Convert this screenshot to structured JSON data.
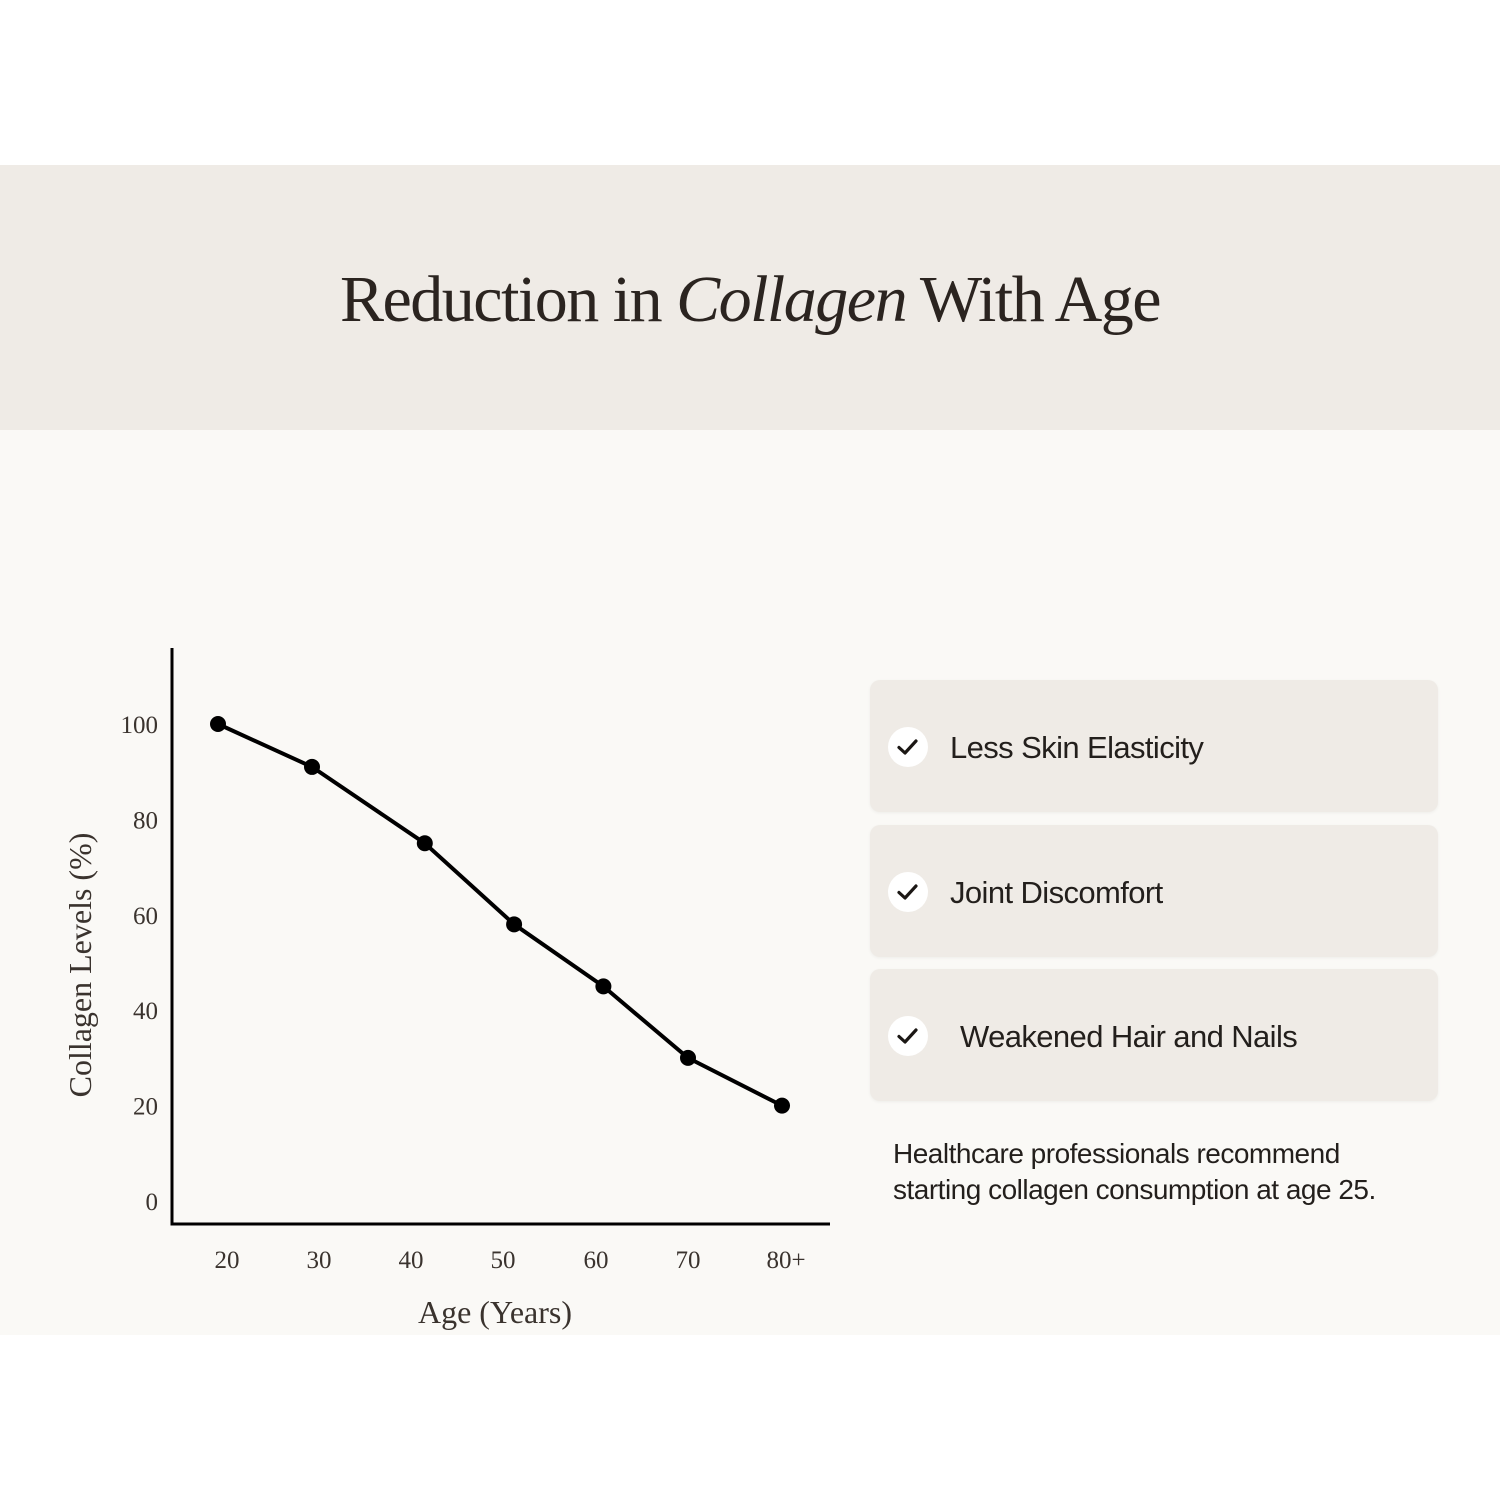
{
  "header": {
    "title_before": "Reduction in ",
    "title_emphasis": "Collagen",
    "title_after": " With Age",
    "band_color": "#efebe6"
  },
  "chart_data": {
    "type": "line",
    "title": "",
    "xlabel": "Age (Years)",
    "ylabel": "Collagen Levels (%)",
    "categories": [
      "20",
      "30",
      "40",
      "50",
      "60",
      "70",
      "80+"
    ],
    "x": [
      20,
      30,
      42,
      51.5,
      61,
      70,
      80
    ],
    "values": [
      100,
      91,
      75,
      58,
      45,
      30,
      20
    ],
    "y_ticks": [
      0,
      20,
      40,
      60,
      80,
      100
    ],
    "ylim": [
      0,
      117
    ],
    "grid": false,
    "line_color": "#000000"
  },
  "cards": [
    {
      "label": "Less Skin Elasticity",
      "icon": "check-icon"
    },
    {
      "label": "Joint Discomfort",
      "icon": "check-icon"
    },
    {
      "label": "Weakened Hair and Nails",
      "icon": "check-icon"
    }
  ],
  "note": {
    "line1": "Healthcare professionals recommend",
    "line2": "starting collagen consumption at age 25."
  }
}
